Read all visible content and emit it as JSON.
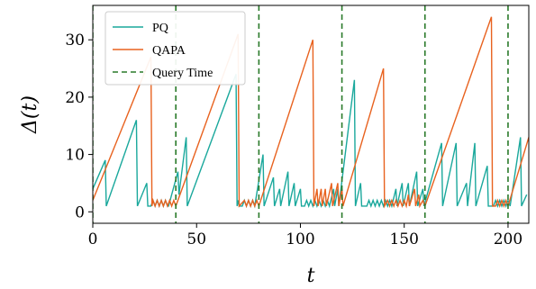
{
  "chart_data": {
    "type": "line",
    "xlabel": "t",
    "ylabel": "Δ(t)",
    "xlim": [
      0,
      210
    ],
    "ylim": [
      -2,
      36
    ],
    "xticks": [
      0,
      50,
      100,
      150,
      200
    ],
    "yticks": [
      0,
      10,
      20,
      30
    ],
    "grid": false,
    "legend_position": "top-left",
    "series": [
      {
        "name": "PQ",
        "color": "#1aa89c",
        "points": [
          [
            0,
            4
          ],
          [
            6,
            9
          ],
          [
            6.5,
            1
          ],
          [
            21,
            16
          ],
          [
            21.5,
            1
          ],
          [
            26,
            5
          ],
          [
            26.5,
            1
          ],
          [
            28,
            1
          ],
          [
            29,
            2
          ],
          [
            30,
            1
          ],
          [
            31,
            2
          ],
          [
            32,
            1
          ],
          [
            33,
            2
          ],
          [
            34,
            1
          ],
          [
            35,
            2
          ],
          [
            36,
            1
          ],
          [
            36.5,
            1
          ],
          [
            41,
            7
          ],
          [
            41.5,
            3
          ],
          [
            45,
            13
          ],
          [
            45.5,
            1
          ],
          [
            69,
            24
          ],
          [
            69.5,
            1
          ],
          [
            70,
            2
          ],
          [
            70.5,
            1
          ],
          [
            72,
            1
          ],
          [
            73,
            2
          ],
          [
            74,
            1
          ],
          [
            75,
            2
          ],
          [
            76,
            1
          ],
          [
            77,
            2
          ],
          [
            78,
            1
          ],
          [
            82,
            10
          ],
          [
            82.5,
            1
          ],
          [
            87,
            6
          ],
          [
            87.5,
            1
          ],
          [
            90,
            4
          ],
          [
            90.5,
            1
          ],
          [
            94,
            7
          ],
          [
            94.5,
            1
          ],
          [
            97,
            5
          ],
          [
            97.5,
            1
          ],
          [
            100,
            4
          ],
          [
            100.5,
            1
          ],
          [
            102,
            1
          ],
          [
            103,
            2
          ],
          [
            104,
            1
          ],
          [
            105,
            2
          ],
          [
            106,
            1
          ],
          [
            107,
            2
          ],
          [
            108,
            1
          ],
          [
            109,
            2
          ],
          [
            110,
            1
          ],
          [
            111,
            2
          ],
          [
            112,
            1
          ],
          [
            113,
            2
          ],
          [
            114,
            1
          ],
          [
            116,
            4
          ],
          [
            116.5,
            1
          ],
          [
            118,
            4
          ],
          [
            118.5,
            1
          ],
          [
            126,
            23
          ],
          [
            126.5,
            1
          ],
          [
            129,
            5
          ],
          [
            129.5,
            1
          ],
          [
            132,
            1
          ],
          [
            133,
            2
          ],
          [
            134,
            1
          ],
          [
            135,
            2
          ],
          [
            136,
            1
          ],
          [
            137,
            2
          ],
          [
            138,
            1
          ],
          [
            139,
            2
          ],
          [
            140,
            1
          ],
          [
            141,
            2
          ],
          [
            142,
            1
          ],
          [
            143,
            2
          ],
          [
            144,
            1
          ],
          [
            146,
            4
          ],
          [
            146.5,
            1
          ],
          [
            149,
            5
          ],
          [
            149.5,
            1
          ],
          [
            152,
            5
          ],
          [
            152.5,
            1
          ],
          [
            156,
            7
          ],
          [
            156.5,
            1
          ],
          [
            159,
            4
          ],
          [
            159.5,
            1
          ],
          [
            168,
            12
          ],
          [
            168.5,
            1
          ],
          [
            175,
            12
          ],
          [
            175.5,
            1
          ],
          [
            180,
            5
          ],
          [
            180.5,
            1
          ],
          [
            184,
            12
          ],
          [
            184.5,
            1
          ],
          [
            190,
            8
          ],
          [
            190.5,
            1
          ],
          [
            193,
            1
          ],
          [
            194,
            2
          ],
          [
            195,
            1
          ],
          [
            196,
            2
          ],
          [
            197,
            1
          ],
          [
            198,
            2
          ],
          [
            199,
            1
          ],
          [
            200,
            2
          ],
          [
            201,
            1
          ],
          [
            206,
            13
          ],
          [
            206.5,
            1
          ],
          [
            209,
            3
          ]
        ]
      },
      {
        "name": "QAPA",
        "color": "#e8621f",
        "points": [
          [
            0,
            2
          ],
          [
            28,
            27
          ],
          [
            28.5,
            1
          ],
          [
            29,
            2
          ],
          [
            30,
            1
          ],
          [
            31,
            2
          ],
          [
            32,
            1
          ],
          [
            33,
            2
          ],
          [
            34,
            1
          ],
          [
            35,
            2
          ],
          [
            36,
            1
          ],
          [
            37,
            2
          ],
          [
            38,
            1
          ],
          [
            39,
            2
          ],
          [
            40,
            1
          ],
          [
            70,
            31
          ],
          [
            70.5,
            1
          ],
          [
            73,
            2
          ],
          [
            74,
            1
          ],
          [
            75,
            2
          ],
          [
            76,
            1
          ],
          [
            77,
            2
          ],
          [
            78,
            1
          ],
          [
            79,
            2
          ],
          [
            80,
            1
          ],
          [
            106,
            30
          ],
          [
            106.5,
            1
          ],
          [
            108,
            4
          ],
          [
            108.5,
            1
          ],
          [
            110,
            4
          ],
          [
            110.5,
            1
          ],
          [
            112,
            4
          ],
          [
            112.5,
            1
          ],
          [
            115,
            5
          ],
          [
            115.5,
            1
          ],
          [
            118,
            5
          ],
          [
            118.5,
            1
          ],
          [
            120,
            4
          ],
          [
            120.5,
            1
          ],
          [
            140,
            25
          ],
          [
            140.5,
            1
          ],
          [
            142,
            2
          ],
          [
            143,
            1
          ],
          [
            144,
            2
          ],
          [
            145,
            1
          ],
          [
            146,
            2
          ],
          [
            147,
            1
          ],
          [
            148,
            2
          ],
          [
            149,
            1
          ],
          [
            150,
            2
          ],
          [
            151,
            1
          ],
          [
            152,
            3
          ],
          [
            152.5,
            1
          ],
          [
            155,
            4
          ],
          [
            155.5,
            1
          ],
          [
            157,
            3
          ],
          [
            157.5,
            1
          ],
          [
            159,
            2
          ],
          [
            160,
            1
          ],
          [
            192,
            34
          ],
          [
            192.5,
            1
          ],
          [
            194,
            1
          ],
          [
            195,
            2
          ],
          [
            196,
            1
          ],
          [
            197,
            2
          ],
          [
            198,
            1
          ],
          [
            199,
            2
          ],
          [
            200,
            1
          ],
          [
            210,
            13
          ]
        ]
      },
      {
        "name": "Query Time",
        "color": "#2a7a2a",
        "style": "dashed-vertical",
        "x": [
          0,
          40,
          80,
          120,
          160,
          200
        ]
      }
    ]
  }
}
